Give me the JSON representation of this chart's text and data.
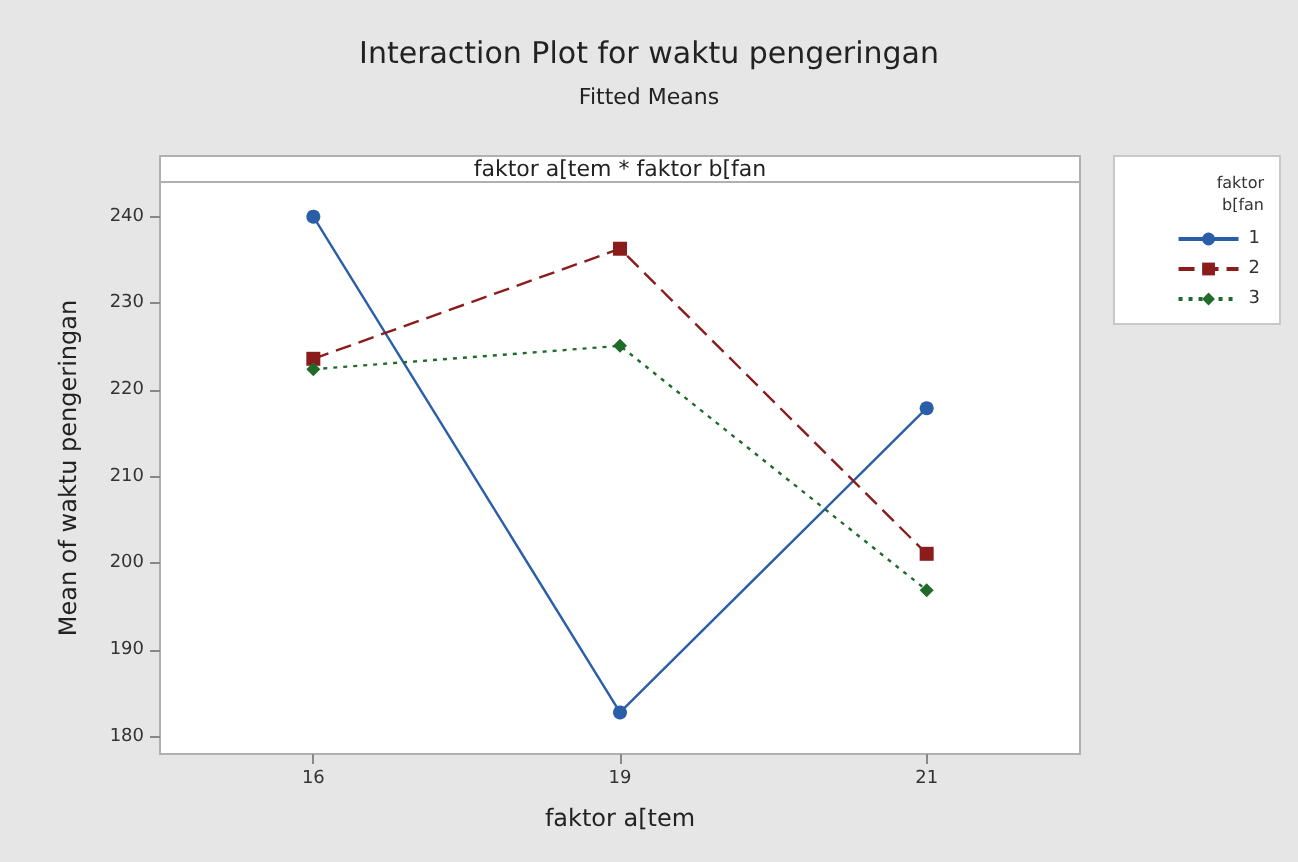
{
  "chart_data": {
    "type": "line",
    "title": "Interaction Plot for waktu pengeringan",
    "subtitle": "Fitted Means",
    "xlabel": "faktor a[tem",
    "ylabel": "Mean of waktu pengeringan",
    "legend_title": "faktor b[fan",
    "annotations": [
      "faktor a[tem * faktor b[fan"
    ],
    "categories": [
      "16",
      "19",
      "21"
    ],
    "series": [
      {
        "name": "1",
        "color": "#2a5ea8",
        "values": [
          240,
          182.8,
          217.9
        ],
        "marker": "circle",
        "line_style": "solid"
      },
      {
        "name": "2",
        "color": "#8b1c1c",
        "values": [
          223.6,
          236.3,
          201.1
        ],
        "marker": "square",
        "line_style": "dashed"
      },
      {
        "name": "3",
        "color": "#1e6b2a",
        "values": [
          222.4,
          225.1,
          196.9
        ],
        "marker": "diamond",
        "line_style": "dotted"
      }
    ],
    "ylim": [
      178,
      244
    ],
    "yticks": [
      180,
      190,
      200,
      210,
      220,
      230,
      240
    ],
    "grid": false,
    "legend": "right"
  }
}
